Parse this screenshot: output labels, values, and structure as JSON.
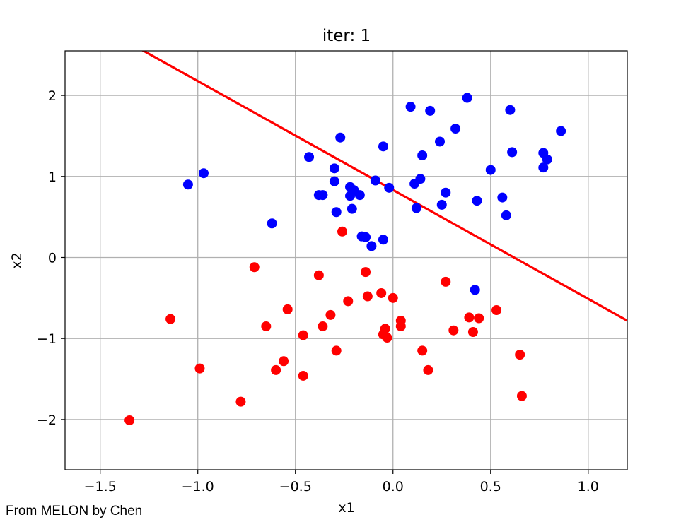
{
  "watermark": "From MELON by Chen",
  "chart_data": {
    "type": "scatter",
    "title": "iter: 1",
    "xlabel": "x1",
    "ylabel": "x2",
    "xlim": [
      -1.68,
      1.2
    ],
    "ylim": [
      -2.62,
      2.55
    ],
    "xticks": [
      -1.5,
      -1.0,
      -0.5,
      0.0,
      0.5,
      1.0
    ],
    "xtick_labels": [
      "−1.5",
      "−1.0",
      "−0.5",
      "0.0",
      "0.5",
      "1.0"
    ],
    "yticks": [
      -2,
      -1,
      0,
      1,
      2
    ],
    "ytick_labels": [
      "−2",
      "−1",
      "0",
      "1",
      "2"
    ],
    "grid": true,
    "colors": {
      "class_pos": "#0000ff",
      "class_neg": "#ff0000",
      "boundary": "#ff0000",
      "grid": "#b0b0b0"
    },
    "series": [
      {
        "color": "#0000ff",
        "points": [
          [
            -1.05,
            0.9
          ],
          [
            -0.97,
            1.04
          ],
          [
            -0.62,
            0.42
          ],
          [
            -0.43,
            1.24
          ],
          [
            -0.38,
            0.77
          ],
          [
            -0.36,
            0.77
          ],
          [
            -0.3,
            1.1
          ],
          [
            -0.3,
            0.94
          ],
          [
            -0.29,
            0.56
          ],
          [
            -0.27,
            1.48
          ],
          [
            -0.22,
            0.87
          ],
          [
            -0.22,
            0.76
          ],
          [
            -0.2,
            0.83
          ],
          [
            -0.21,
            0.6
          ],
          [
            -0.17,
            0.77
          ],
          [
            -0.16,
            0.26
          ],
          [
            -0.14,
            0.25
          ],
          [
            -0.11,
            0.14
          ],
          [
            -0.09,
            0.95
          ],
          [
            -0.05,
            0.22
          ],
          [
            -0.05,
            1.37
          ],
          [
            -0.02,
            0.86
          ],
          [
            0.09,
            1.86
          ],
          [
            0.11,
            0.91
          ],
          [
            0.12,
            0.61
          ],
          [
            0.14,
            0.97
          ],
          [
            0.15,
            1.26
          ],
          [
            0.19,
            1.81
          ],
          [
            0.24,
            1.43
          ],
          [
            0.25,
            0.65
          ],
          [
            0.27,
            0.8
          ],
          [
            0.32,
            1.59
          ],
          [
            0.38,
            1.97
          ],
          [
            0.42,
            -0.4
          ],
          [
            0.43,
            0.7
          ],
          [
            0.5,
            1.08
          ],
          [
            0.56,
            0.74
          ],
          [
            0.58,
            0.52
          ],
          [
            0.6,
            1.82
          ],
          [
            0.61,
            1.3
          ],
          [
            0.77,
            1.29
          ],
          [
            0.77,
            1.11
          ],
          [
            0.79,
            1.21
          ],
          [
            0.86,
            1.56
          ]
        ]
      },
      {
        "color": "#ff0000",
        "points": [
          [
            -1.35,
            -2.01
          ],
          [
            -1.14,
            -0.76
          ],
          [
            -0.99,
            -1.37
          ],
          [
            -0.78,
            -1.78
          ],
          [
            -0.71,
            -0.12
          ],
          [
            -0.65,
            -0.85
          ],
          [
            -0.6,
            -1.39
          ],
          [
            -0.56,
            -1.28
          ],
          [
            -0.54,
            -0.64
          ],
          [
            -0.46,
            -0.96
          ],
          [
            -0.46,
            -1.46
          ],
          [
            -0.38,
            -0.22
          ],
          [
            -0.36,
            -0.85
          ],
          [
            -0.32,
            -0.71
          ],
          [
            -0.29,
            -1.15
          ],
          [
            -0.26,
            0.32
          ],
          [
            -0.23,
            -0.54
          ],
          [
            -0.14,
            -0.18
          ],
          [
            -0.13,
            -0.48
          ],
          [
            -0.06,
            -0.44
          ],
          [
            -0.05,
            -0.95
          ],
          [
            -0.04,
            -0.88
          ],
          [
            -0.03,
            -0.99
          ],
          [
            0.0,
            -0.5
          ],
          [
            0.04,
            -0.78
          ],
          [
            0.04,
            -0.85
          ],
          [
            0.15,
            -1.15
          ],
          [
            0.18,
            -1.39
          ],
          [
            0.27,
            -0.3
          ],
          [
            0.31,
            -0.9
          ],
          [
            0.39,
            -0.74
          ],
          [
            0.41,
            -0.92
          ],
          [
            0.44,
            -0.75
          ],
          [
            0.53,
            -0.65
          ],
          [
            0.65,
            -1.2
          ],
          [
            0.66,
            -1.71
          ]
        ]
      }
    ],
    "boundary_line": {
      "x": [
        -1.3,
        1.2
      ],
      "y": [
        2.58,
        -0.78
      ]
    }
  }
}
